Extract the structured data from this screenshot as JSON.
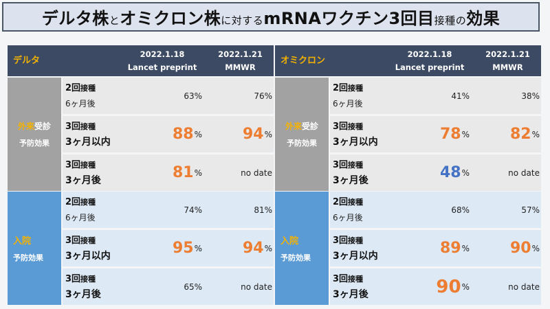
{
  "title": {
    "part1": "デルタ株",
    "conn1": "と",
    "part2": "オミクロン株",
    "conn2": "に対する",
    "part3": "mRNAワクチン3回目",
    "part4": "接種",
    "conn3": "の",
    "part5": "効果"
  },
  "headers": {
    "col1_date": "2022.1.18",
    "col1_source": "Lancet preprint",
    "col2_date": "2022.1.21",
    "col2_source": "MMWR"
  },
  "groups": {
    "outpatient": {
      "line1a": "外来",
      "line1b": "受診",
      "line2": "予防効果"
    },
    "hospital": {
      "line1": "入院",
      "line2": "予防効果"
    }
  },
  "doses": {
    "two_doses": {
      "count": "2回",
      "unit": "接種",
      "period": "6ヶ月後"
    },
    "three_doses_within3": {
      "count": "3回",
      "unit": "接種",
      "period": "3ヶ月以内"
    },
    "three_doses_after3": {
      "count": "3回",
      "unit": "接種",
      "period": "3ヶ月後"
    }
  },
  "delta": {
    "name": "デルタ",
    "outpatient": [
      {
        "c1": "63%",
        "c2": "76%"
      },
      {
        "c1": "88",
        "c2": "94"
      },
      {
        "c1": "81",
        "c2": "no date"
      }
    ],
    "hospital": [
      {
        "c1": "74%",
        "c2": "81%"
      },
      {
        "c1": "95",
        "c2": "94"
      },
      {
        "c1": "65%",
        "c2": "no date"
      }
    ]
  },
  "omicron": {
    "name": "オミクロン",
    "outpatient": [
      {
        "c1": "41%",
        "c2": "38%"
      },
      {
        "c1": "78",
        "c2": "82"
      },
      {
        "c1": "48",
        "c2": "no date"
      }
    ],
    "hospital": [
      {
        "c1": "68%",
        "c2": "57%"
      },
      {
        "c1": "89",
        "c2": "90"
      },
      {
        "c1": "90",
        "c2": "no date"
      }
    ]
  },
  "percent_sign": "%",
  "colors": {
    "header_bg": "#3c4b63",
    "accent_yellow": "#f3b200",
    "highlight_orange": "#ed7d31",
    "highlight_blue": "#4472c4",
    "outpatient_gray": "#a2a2a2",
    "hospital_blue": "#5b9bd5"
  }
}
